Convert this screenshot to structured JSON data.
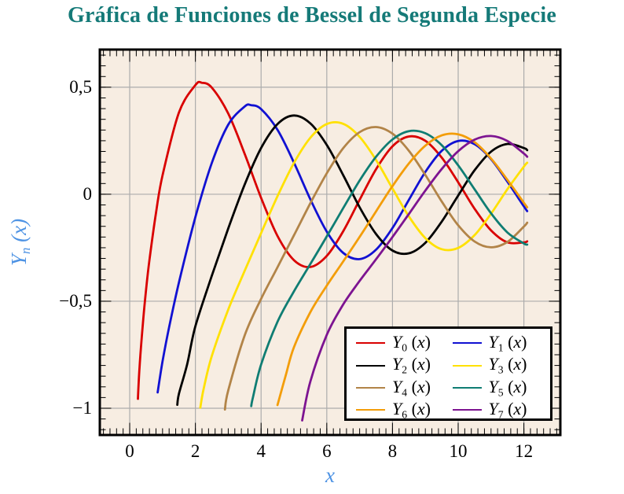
{
  "chart_data": {
    "type": "line",
    "title": "Gráfica de Funciones de Bessel de Segunda Especie",
    "xlabel": "x",
    "ylabel": "Yn(x)",
    "xlim": [
      -0.91,
      13.11
    ],
    "ylim": [
      -1.125,
      0.676
    ],
    "grid": true,
    "legend_position": "south east",
    "xticks": {
      "values": [
        0,
        2,
        4,
        6,
        8,
        10,
        12
      ],
      "labels": [
        "0",
        "2",
        "4",
        "6",
        "8",
        "10",
        "12"
      ],
      "minor_step": 0.2
    },
    "yticks": {
      "values": [
        0.5,
        0,
        -0.5,
        -1
      ],
      "labels": [
        "0,5",
        "0",
        "−0,5",
        "−1"
      ],
      "minor_step": 0.05
    },
    "colors": {
      "title": "#157A78",
      "axis_label": "#4E93E4",
      "plot_bg": "#F7EDE2",
      "grid": "#ACACAC",
      "frame": "#000000",
      "tick": "#000000",
      "legend_border": "#000000"
    },
    "series": [
      {
        "name": "Y0(x)",
        "color": "#D90000",
        "points": [
          [
            0.25,
            -0.956
          ],
          [
            0.3,
            -0.807
          ],
          [
            0.4,
            -0.606
          ],
          [
            0.5,
            -0.445
          ],
          [
            0.6,
            -0.309
          ],
          [
            0.8,
            -0.087
          ],
          [
            1,
            0.088
          ],
          [
            1.5,
            0.382
          ],
          [
            2,
            0.51
          ],
          [
            2.2,
            0.521
          ],
          [
            2.5,
            0.498
          ],
          [
            3,
            0.377
          ],
          [
            3.5,
            0.189
          ],
          [
            4,
            -0.017
          ],
          [
            4.5,
            -0.195
          ],
          [
            5,
            -0.308
          ],
          [
            5.5,
            -0.34
          ],
          [
            6,
            -0.288
          ],
          [
            6.5,
            -0.173
          ],
          [
            7,
            -0.026
          ],
          [
            7.5,
            0.117
          ],
          [
            8,
            0.224
          ],
          [
            8.5,
            0.27
          ],
          [
            9,
            0.25
          ],
          [
            9.5,
            0.171
          ],
          [
            10,
            0.056
          ],
          [
            10.5,
            -0.068
          ],
          [
            11,
            -0.169
          ],
          [
            11.5,
            -0.225
          ],
          [
            12,
            -0.225
          ],
          [
            12.1,
            -0.22
          ]
        ]
      },
      {
        "name": "Y1(x)",
        "color": "#1111D2",
        "points": [
          [
            0.85,
            -0.926
          ],
          [
            1,
            -0.781
          ],
          [
            1.2,
            -0.621
          ],
          [
            1.5,
            -0.412
          ],
          [
            2,
            -0.107
          ],
          [
            2.5,
            0.146
          ],
          [
            3,
            0.325
          ],
          [
            3.5,
            0.41
          ],
          [
            3.7,
            0.416
          ],
          [
            4,
            0.398
          ],
          [
            4.5,
            0.301
          ],
          [
            5,
            0.148
          ],
          [
            5.5,
            -0.024
          ],
          [
            6,
            -0.175
          ],
          [
            6.5,
            -0.274
          ],
          [
            7,
            -0.303
          ],
          [
            7.5,
            -0.259
          ],
          [
            8,
            -0.158
          ],
          [
            8.5,
            -0.026
          ],
          [
            9,
            0.104
          ],
          [
            9.5,
            0.203
          ],
          [
            10,
            0.249
          ],
          [
            10.5,
            0.234
          ],
          [
            11,
            0.164
          ],
          [
            11.5,
            0.058
          ],
          [
            12,
            -0.057
          ],
          [
            12.1,
            -0.079
          ]
        ]
      },
      {
        "name": "Y2(x)",
        "color": "#000000",
        "points": [
          [
            1.45,
            -0.984
          ],
          [
            1.5,
            -0.932
          ],
          [
            1.75,
            -0.794
          ],
          [
            2,
            -0.617
          ],
          [
            2.5,
            -0.381
          ],
          [
            3,
            -0.16
          ],
          [
            3.5,
            0.045
          ],
          [
            4,
            0.216
          ],
          [
            4.5,
            0.328
          ],
          [
            5,
            0.368
          ],
          [
            5.5,
            0.331
          ],
          [
            6,
            0.23
          ],
          [
            6.5,
            0.089
          ],
          [
            7,
            -0.061
          ],
          [
            7.5,
            -0.186
          ],
          [
            8,
            -0.263
          ],
          [
            8.5,
            -0.276
          ],
          [
            9,
            -0.227
          ],
          [
            9.5,
            -0.128
          ],
          [
            10,
            -0.006
          ],
          [
            10.5,
            0.112
          ],
          [
            11,
            0.199
          ],
          [
            11.5,
            0.235
          ],
          [
            12,
            0.216
          ],
          [
            12.1,
            0.206
          ]
        ]
      },
      {
        "name": "Y3(x)",
        "color": "#FFE103",
        "points": [
          [
            2.15,
            -0.997
          ],
          [
            2.25,
            -0.91
          ],
          [
            2.5,
            -0.756
          ],
          [
            3,
            -0.539
          ],
          [
            3.5,
            -0.358
          ],
          [
            4,
            -0.182
          ],
          [
            4.5,
            -0.009
          ],
          [
            5,
            0.146
          ],
          [
            5.5,
            0.264
          ],
          [
            6,
            0.328
          ],
          [
            6.5,
            0.329
          ],
          [
            7,
            0.268
          ],
          [
            7.5,
            0.16
          ],
          [
            8,
            0.027
          ],
          [
            8.5,
            -0.104
          ],
          [
            9,
            -0.205
          ],
          [
            9.5,
            -0.257
          ],
          [
            10,
            -0.251
          ],
          [
            10.5,
            -0.191
          ],
          [
            11,
            -0.091
          ],
          [
            11.5,
            0.024
          ],
          [
            12,
            0.129
          ],
          [
            12.1,
            0.147
          ]
        ]
      },
      {
        "name": "Y4(x)",
        "color": "#B28448",
        "points": [
          [
            2.9,
            -1.006
          ],
          [
            3,
            -0.917
          ],
          [
            3.5,
            -0.66
          ],
          [
            4,
            -0.489
          ],
          [
            4.5,
            -0.341
          ],
          [
            5,
            -0.192
          ],
          [
            5.5,
            -0.042
          ],
          [
            6,
            0.098
          ],
          [
            6.5,
            0.215
          ],
          [
            7,
            0.29
          ],
          [
            7.5,
            0.314
          ],
          [
            8,
            0.283
          ],
          [
            8.5,
            0.203
          ],
          [
            9,
            0.09
          ],
          [
            9.5,
            -0.034
          ],
          [
            10,
            -0.145
          ],
          [
            10.5,
            -0.221
          ],
          [
            11,
            -0.248
          ],
          [
            11.5,
            -0.223
          ],
          [
            12,
            -0.151
          ],
          [
            12.1,
            -0.133
          ]
        ]
      },
      {
        "name": "Y5(x)",
        "color": "#0F7D73",
        "points": [
          [
            3.7,
            -0.99
          ],
          [
            3.75,
            -0.95
          ],
          [
            4,
            -0.796
          ],
          [
            4.5,
            -0.596
          ],
          [
            5,
            -0.454
          ],
          [
            5.5,
            -0.326
          ],
          [
            6,
            -0.197
          ],
          [
            6.5,
            -0.065
          ],
          [
            7,
            0.064
          ],
          [
            7.5,
            0.175
          ],
          [
            8,
            0.256
          ],
          [
            8.5,
            0.295
          ],
          [
            9,
            0.285
          ],
          [
            9.5,
            0.229
          ],
          [
            10,
            0.135
          ],
          [
            10.5,
            0.023
          ],
          [
            11,
            -0.089
          ],
          [
            11.5,
            -0.179
          ],
          [
            12,
            -0.23
          ],
          [
            12.1,
            -0.235
          ]
        ]
      },
      {
        "name": "Y6(x)",
        "color": "#F39D09",
        "points": [
          [
            4.5,
            -0.985
          ],
          [
            4.75,
            -0.846
          ],
          [
            5,
            -0.715
          ],
          [
            5.5,
            -0.551
          ],
          [
            6,
            -0.427
          ],
          [
            6.5,
            -0.314
          ],
          [
            7,
            -0.199
          ],
          [
            7.5,
            -0.08
          ],
          [
            8,
            0.038
          ],
          [
            8.5,
            0.144
          ],
          [
            9,
            0.227
          ],
          [
            9.5,
            0.275
          ],
          [
            10,
            0.28
          ],
          [
            10.5,
            0.243
          ],
          [
            11,
            0.167
          ],
          [
            11.5,
            0.067
          ],
          [
            12,
            -0.04
          ],
          [
            12.1,
            -0.061
          ]
        ]
      },
      {
        "name": "Y7(x)",
        "color": "#7D1491",
        "points": [
          [
            5.25,
            -1.057
          ],
          [
            5.5,
            -0.875
          ],
          [
            6,
            -0.657
          ],
          [
            6.5,
            -0.515
          ],
          [
            7,
            -0.405
          ],
          [
            7.5,
            -0.304
          ],
          [
            8,
            -0.2
          ],
          [
            8.5,
            -0.092
          ],
          [
            9,
            0.017
          ],
          [
            9.5,
            0.118
          ],
          [
            10,
            0.201
          ],
          [
            10.5,
            0.255
          ],
          [
            11,
            0.272
          ],
          [
            11.5,
            0.249
          ],
          [
            12,
            0.19
          ],
          [
            12.1,
            0.175
          ]
        ]
      }
    ]
  }
}
